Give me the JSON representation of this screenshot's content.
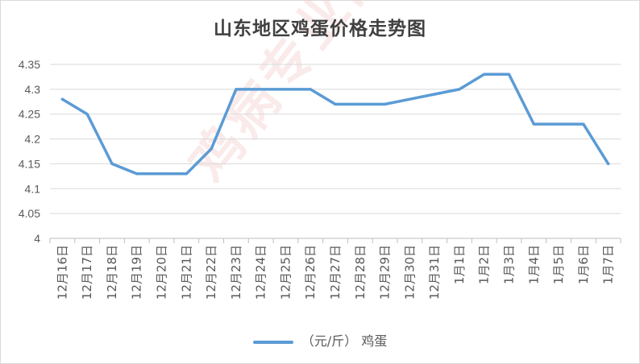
{
  "chart_data": {
    "type": "line",
    "title": "山东地区鸡蛋价格走势图",
    "categories": [
      "12月16日",
      "12月17日",
      "12月18日",
      "12月19日",
      "12月20日",
      "12月21日",
      "12月22日",
      "12月23日",
      "12月24日",
      "12月25日",
      "12月26日",
      "12月27日",
      "12月28日",
      "12月29日",
      "12月30日",
      "12月31日",
      "1月1日",
      "1月2日",
      "1月3日",
      "1月4日",
      "1月5日",
      "1月6日",
      "1月7日"
    ],
    "series": [
      {
        "name": "（元/斤） 鸡蛋",
        "values": [
          4.28,
          4.25,
          4.15,
          4.13,
          4.13,
          4.13,
          4.18,
          4.3,
          4.3,
          4.3,
          4.3,
          4.27,
          4.27,
          4.27,
          4.28,
          4.29,
          4.3,
          4.33,
          4.33,
          4.23,
          4.23,
          4.23,
          4.15
        ]
      }
    ],
    "ylim": [
      4,
      4.35
    ],
    "yticks": [
      "4",
      "4.05",
      "4.1",
      "4.15",
      "4.2",
      "4.25",
      "4.3",
      "4.35"
    ],
    "grid": true,
    "legend_position": "bottom",
    "line_color": "#5b9bd5"
  },
  "watermark": {
    "text": "鸡病专业网 www.jbzyw.com"
  }
}
